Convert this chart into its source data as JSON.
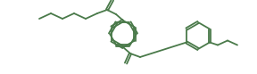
{
  "bg_color": "#ffffff",
  "line_color": "#4a7a4a",
  "line_width": 1.3,
  "figsize": [
    2.88,
    0.83
  ],
  "dpi": 100,
  "xlim": [
    0,
    288
  ],
  "ylim": [
    0,
    83
  ]
}
